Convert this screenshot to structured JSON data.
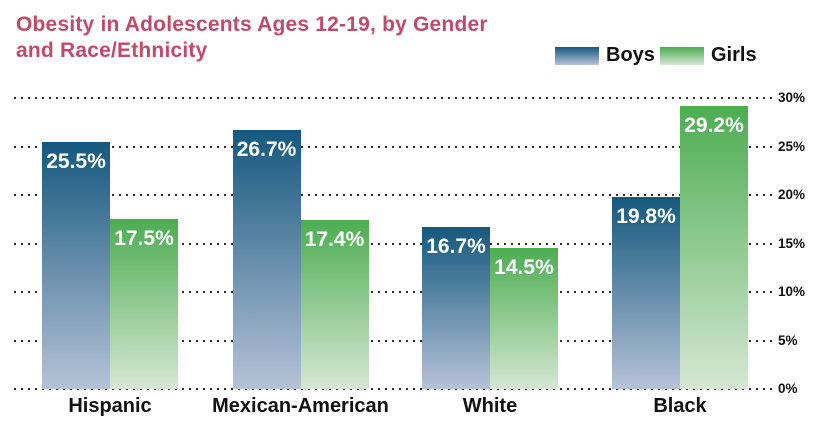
{
  "title": {
    "text": "Obesity in Adolescents Ages 12-19, by Gender and Race/Ethnicity",
    "color": "#c14a6a"
  },
  "legend": {
    "position": "top-right",
    "items": [
      {
        "label": "Boys",
        "gradient_top": "#15587e",
        "gradient_bottom": "#b6c2d7"
      },
      {
        "label": "Girls",
        "gradient_top": "#4cad51",
        "gradient_bottom": "#d6e7d4"
      }
    ]
  },
  "chart_data": {
    "type": "bar",
    "title": "Obesity in Adolescents Ages 12-19, by Gender and Race/Ethnicity",
    "categories": [
      "Hispanic",
      "Mexican-American",
      "White",
      "Black"
    ],
    "series": [
      {
        "name": "Boys",
        "values": [
          25.5,
          26.7,
          16.7,
          19.8
        ],
        "labels": [
          "25.5%",
          "26.7%",
          "16.7%",
          "19.8%"
        ],
        "color_top": "#15587e",
        "color_bottom": "#b6c2d7"
      },
      {
        "name": "Girls",
        "values": [
          17.5,
          17.4,
          14.5,
          29.2
        ],
        "labels": [
          "17.5%",
          "17.4%",
          "14.5%",
          "29.2%"
        ],
        "color_top": "#4cad51",
        "color_bottom": "#d6e7d4"
      }
    ],
    "ylim": [
      0,
      30
    ],
    "ytick_step": 5,
    "yticks": [
      "0%",
      "5%",
      "10%",
      "15%",
      "20%",
      "25%",
      "30%"
    ],
    "ytick_side": "right",
    "grid": "dotted-horizontal",
    "value_label_color": "#ffffff",
    "axis_label_color": "#111111",
    "gridline_color": "#2e2e2e"
  }
}
